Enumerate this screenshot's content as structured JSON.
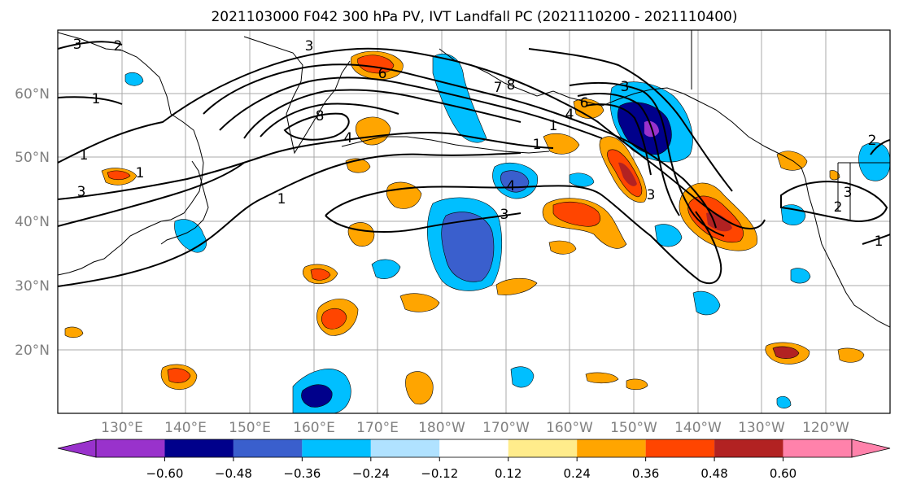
{
  "title": "2021103000 F042 300 hPa PV, IVT Landfall PC (2021110200 - 2021110400)",
  "map": {
    "lat_labels": [
      "60°N",
      "50°N",
      "40°N",
      "30°N",
      "20°N"
    ],
    "lon_labels": [
      "130°E",
      "140°E",
      "150°E",
      "160°E",
      "170°E",
      "180°W",
      "170°W",
      "160°W",
      "150°W",
      "140°W",
      "130°W",
      "120°W"
    ],
    "contour_labels": [
      "3",
      "2",
      "1",
      "3",
      "6",
      "7",
      "8",
      "6",
      "3",
      "1",
      "3",
      "8",
      "4",
      "1",
      "1",
      "4",
      "3",
      "4",
      "3",
      "1",
      "3",
      "1",
      "2",
      "2",
      "1"
    ],
    "colors": {
      "land_outline": "#000000",
      "grid": "#a8a8a8",
      "axis_labels": "#808080"
    }
  },
  "colorbar": {
    "tick_labels": [
      "−0.60",
      "−0.48",
      "−0.36",
      "−0.24",
      "−0.12",
      "0.12",
      "0.24",
      "0.36",
      "0.48",
      "0.60"
    ],
    "colors": [
      "#9932cc",
      "#00008b",
      "#3a5fcd",
      "#00bfff",
      "#b0e2ff",
      "#ffffff",
      "#ffec8b",
      "#ffa500",
      "#ff4500",
      "#b22222",
      "#ff82ab"
    ]
  }
}
